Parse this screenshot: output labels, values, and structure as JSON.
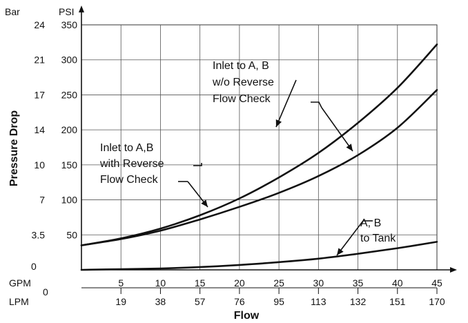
{
  "chart_data": {
    "type": "line",
    "title": "",
    "xlabel": "Flow",
    "ylabel": "Pressure Drop",
    "x_units": {
      "primary": "GPM",
      "secondary": "LPM"
    },
    "y_units": {
      "primary": "PSI",
      "secondary": "Bar"
    },
    "xlim": [
      0,
      45
    ],
    "ylim": [
      0,
      350
    ],
    "grid": true,
    "x_ticks_gpm": [
      "5",
      "10",
      "15",
      "20",
      "25",
      "30",
      "35",
      "40",
      "45"
    ],
    "x_ticks_lpm": [
      "19",
      "38",
      "57",
      "76",
      "95",
      "113",
      "132",
      "151",
      "170"
    ],
    "x_origin_label": "0",
    "y_ticks_psi": [
      "50",
      "100",
      "150",
      "200",
      "250",
      "300",
      "350"
    ],
    "y_ticks_bar": [
      "3.5",
      "7",
      "10",
      "14",
      "17",
      "21",
      "24"
    ],
    "y_origin_label": "0",
    "series": [
      {
        "label_lines": [
          "Inlet to A, B",
          "w/o Reverse",
          "Flow Check"
        ],
        "x": [
          0,
          5,
          10,
          15,
          20,
          25,
          30,
          35,
          40,
          45
        ],
        "y": [
          35,
          45,
          59,
          78,
          102,
          132,
          167,
          210,
          260,
          322
        ]
      },
      {
        "label_lines": [
          "Inlet to A,B",
          "with Reverse",
          "Flow Check"
        ],
        "x": [
          0,
          5,
          10,
          15,
          20,
          25,
          30,
          35,
          40,
          45
        ],
        "y": [
          35,
          44,
          56,
          72,
          90,
          110,
          134,
          164,
          203,
          257
        ]
      },
      {
        "label_lines": [
          "A, B",
          "to Tank"
        ],
        "x": [
          0,
          5,
          10,
          15,
          20,
          25,
          30,
          35,
          40,
          45
        ],
        "y": [
          0,
          1,
          2,
          4,
          7,
          11,
          16,
          23,
          31,
          40
        ]
      }
    ]
  }
}
